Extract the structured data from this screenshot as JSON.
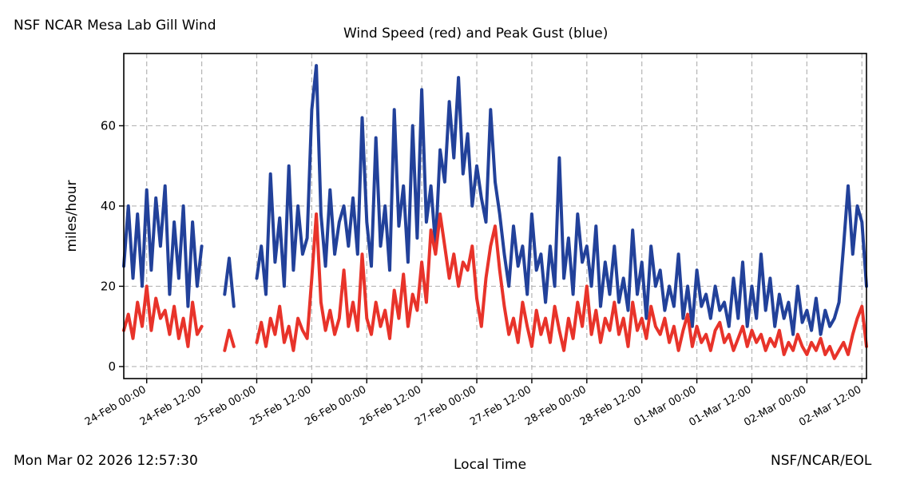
{
  "header": {
    "left_title": "NSF NCAR Mesa Lab Gill Wind"
  },
  "footer": {
    "timestamp": "Mon Mar 02 2026 12:57:30",
    "credit": "NSF/NCAR/EOL"
  },
  "colors": {
    "wind_speed": "#e8332a",
    "peak_gust": "#22419a",
    "grid": "#b5b5b5"
  },
  "chart_data": {
    "type": "line",
    "title": "Wind Speed (red) and Peak Gust (blue)",
    "xlabel": "Local Time",
    "ylabel": "miles/hour",
    "x_unit": "hours since 23-Feb 19:00 local",
    "xlim": [
      0,
      162
    ],
    "ylim": [
      -3,
      78
    ],
    "yticks": [
      0,
      20,
      40,
      60
    ],
    "xticks": [
      {
        "label": "24-Feb 00:00",
        "x": 5
      },
      {
        "label": "24-Feb 12:00",
        "x": 17
      },
      {
        "label": "25-Feb 00:00",
        "x": 29
      },
      {
        "label": "25-Feb 12:00",
        "x": 41
      },
      {
        "label": "26-Feb 00:00",
        "x": 53
      },
      {
        "label": "26-Feb 12:00",
        "x": 65
      },
      {
        "label": "27-Feb 00:00",
        "x": 77
      },
      {
        "label": "27-Feb 12:00",
        "x": 89
      },
      {
        "label": "28-Feb 00:00",
        "x": 101
      },
      {
        "label": "28-Feb 12:00",
        "x": 113
      },
      {
        "label": "01-Mar 00:00",
        "x": 125
      },
      {
        "label": "01-Mar 12:00",
        "x": 137
      },
      {
        "label": "02-Mar 00:00",
        "x": 149
      },
      {
        "label": "02-Mar 12:00",
        "x": 161
      }
    ],
    "grid": true,
    "series": [
      {
        "name": "Wind Speed",
        "color": "#e8332a",
        "segments": [
          {
            "x": [
              0,
              1,
              2,
              3,
              4,
              5,
              6,
              7,
              8,
              9,
              10,
              11,
              12,
              13,
              14,
              15,
              16,
              17
            ],
            "y": [
              9,
              13,
              7,
              16,
              10,
              20,
              9,
              17,
              12,
              14,
              8,
              15,
              7,
              12,
              5,
              16,
              8,
              10
            ]
          },
          {
            "x": [
              22,
              23,
              24
            ],
            "y": [
              4,
              9,
              5
            ]
          },
          {
            "x": [
              29,
              30,
              31,
              32,
              33,
              34,
              35,
              36,
              37,
              38,
              39,
              40,
              41,
              42,
              43,
              44,
              45,
              46,
              47,
              48,
              49,
              50,
              51,
              52,
              53,
              54,
              55,
              56,
              57,
              58,
              59,
              60,
              61,
              62,
              63,
              64,
              65,
              66,
              67,
              68,
              69,
              70,
              71,
              72,
              73,
              74,
              75,
              76,
              77,
              78,
              79,
              80,
              81,
              82,
              83,
              84,
              85,
              86,
              87,
              88,
              89,
              90,
              91,
              92,
              93,
              94,
              95,
              96,
              97,
              98,
              99,
              100,
              101,
              102,
              103,
              104,
              105,
              106,
              107,
              108,
              109,
              110,
              111,
              112,
              113,
              114,
              115,
              116,
              117,
              118,
              119,
              120,
              121,
              122,
              123,
              124,
              125,
              126,
              127,
              128,
              129,
              130,
              131,
              132,
              133,
              134,
              135,
              136,
              137,
              138,
              139,
              140,
              141,
              142,
              143,
              144,
              145,
              146,
              147,
              148,
              149,
              150,
              151,
              152,
              153,
              154,
              155,
              156,
              157,
              158,
              159,
              160,
              161,
              162
            ],
            "y": [
              6,
              11,
              5,
              12,
              8,
              15,
              6,
              10,
              4,
              12,
              9,
              7,
              22,
              38,
              16,
              9,
              14,
              8,
              12,
              24,
              10,
              16,
              9,
              28,
              12,
              8,
              16,
              10,
              14,
              7,
              19,
              12,
              23,
              10,
              18,
              14,
              26,
              16,
              34,
              28,
              38,
              30,
              22,
              28,
              20,
              26,
              24,
              30,
              17,
              10,
              22,
              30,
              35,
              24,
              15,
              8,
              12,
              6,
              16,
              10,
              5,
              14,
              8,
              12,
              6,
              15,
              9,
              4,
              12,
              7,
              16,
              10,
              20,
              8,
              14,
              6,
              12,
              9,
              16,
              8,
              12,
              5,
              16,
              9,
              12,
              7,
              15,
              10,
              8,
              12,
              6,
              10,
              4,
              9,
              13,
              5,
              10,
              6,
              8,
              4,
              9,
              11,
              6,
              8,
              4,
              7,
              10,
              5,
              9,
              6,
              8,
              4,
              7,
              5,
              9,
              3,
              6,
              4,
              8,
              5,
              3,
              6,
              4,
              7,
              3,
              5,
              2,
              4,
              6,
              3,
              8,
              12,
              15,
              5
            ]
          }
        ]
      },
      {
        "name": "Peak Gust",
        "color": "#22419a",
        "segments": [
          {
            "x": [
              0,
              1,
              2,
              3,
              4,
              5,
              6,
              7,
              8,
              9,
              10,
              11,
              12,
              13,
              14,
              15,
              16,
              17
            ],
            "y": [
              25,
              40,
              22,
              38,
              20,
              44,
              24,
              42,
              30,
              45,
              18,
              36,
              22,
              40,
              15,
              36,
              20,
              30
            ]
          },
          {
            "x": [
              22,
              23,
              24
            ],
            "y": [
              18,
              27,
              15
            ]
          },
          {
            "x": [
              29,
              30,
              31,
              32,
              33,
              34,
              35,
              36,
              37,
              38,
              39,
              40,
              41,
              42,
              43,
              44,
              45,
              46,
              47,
              48,
              49,
              50,
              51,
              52,
              53,
              54,
              55,
              56,
              57,
              58,
              59,
              60,
              61,
              62,
              63,
              64,
              65,
              66,
              67,
              68,
              69,
              70,
              71,
              72,
              73,
              74,
              75,
              76,
              77,
              78,
              79,
              80,
              81,
              82,
              83,
              84,
              85,
              86,
              87,
              88,
              89,
              90,
              91,
              92,
              93,
              94,
              95,
              96,
              97,
              98,
              99,
              100,
              101,
              102,
              103,
              104,
              105,
              106,
              107,
              108,
              109,
              110,
              111,
              112,
              113,
              114,
              115,
              116,
              117,
              118,
              119,
              120,
              121,
              122,
              123,
              124,
              125,
              126,
              127,
              128,
              129,
              130,
              131,
              132,
              133,
              134,
              135,
              136,
              137,
              138,
              139,
              140,
              141,
              142,
              143,
              144,
              145,
              146,
              147,
              148,
              149,
              150,
              151,
              152,
              153,
              154,
              155,
              156,
              157,
              158,
              159,
              160,
              161,
              162
            ],
            "y": [
              22,
              30,
              18,
              48,
              26,
              37,
              20,
              50,
              24,
              40,
              28,
              32,
              64,
              75,
              38,
              25,
              44,
              28,
              36,
              40,
              30,
              42,
              28,
              62,
              36,
              25,
              57,
              30,
              40,
              24,
              64,
              35,
              45,
              26,
              60,
              32,
              69,
              36,
              45,
              30,
              54,
              46,
              66,
              52,
              72,
              48,
              58,
              40,
              50,
              42,
              36,
              64,
              46,
              38,
              28,
              20,
              35,
              25,
              30,
              18,
              38,
              24,
              28,
              16,
              30,
              20,
              52,
              22,
              32,
              18,
              38,
              26,
              30,
              20,
              35,
              15,
              26,
              18,
              30,
              16,
              22,
              14,
              34,
              18,
              26,
              12,
              30,
              20,
              24,
              14,
              20,
              15,
              28,
              12,
              20,
              10,
              24,
              15,
              18,
              12,
              20,
              14,
              16,
              10,
              22,
              12,
              26,
              10,
              20,
              12,
              28,
              14,
              22,
              10,
              18,
              12,
              16,
              8,
              20,
              11,
              14,
              9,
              17,
              8,
              14,
              10,
              12,
              16,
              30,
              45,
              28,
              40,
              36,
              20
            ]
          }
        ]
      }
    ]
  }
}
